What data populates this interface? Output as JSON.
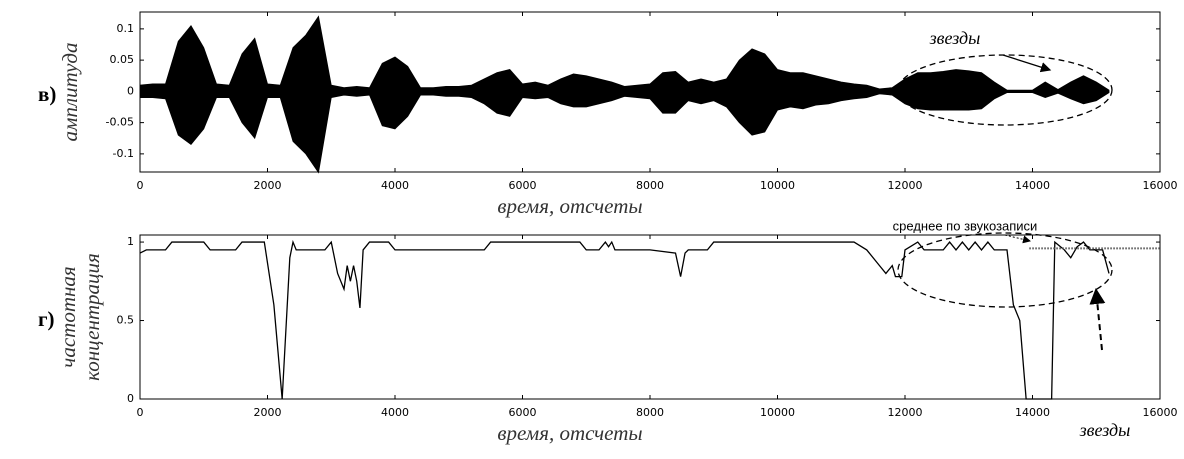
{
  "chart_data": [
    {
      "type": "area",
      "panel_label": "в)",
      "xlabel": "время, отсчеты",
      "ylabel": "амплитуда",
      "annotation": "звезды",
      "xlim": [
        0,
        16000
      ],
      "xticks": [
        0,
        2000,
        4000,
        6000,
        8000,
        10000,
        12000,
        14000,
        16000
      ],
      "ylim": [
        -0.129,
        0.127
      ],
      "yticks": [
        -0.1,
        -0.05,
        0,
        0.05,
        0.1
      ],
      "color": "#000000",
      "x": [
        0,
        200,
        400,
        600,
        800,
        1000,
        1200,
        1400,
        1600,
        1800,
        2000,
        2200,
        2400,
        2600,
        2800,
        3000,
        3200,
        3400,
        3600,
        3800,
        4000,
        4200,
        4400,
        4600,
        4800,
        5000,
        5200,
        5400,
        5600,
        5800,
        6000,
        6200,
        6400,
        6600,
        6800,
        7000,
        7200,
        7400,
        7600,
        7800,
        8000,
        8200,
        8400,
        8600,
        8800,
        9000,
        9200,
        9400,
        9600,
        9800,
        10000,
        10200,
        10400,
        10600,
        10800,
        11000,
        11200,
        11400,
        11600,
        11800,
        12000,
        12200,
        12400,
        12600,
        12800,
        13000,
        13200,
        13400,
        13600,
        13800,
        14000,
        14200,
        14400,
        14600,
        14800,
        15000,
        15200
      ],
      "values": [
        0.01,
        0.012,
        0.012,
        0.08,
        0.105,
        0.07,
        0.012,
        0.01,
        0.06,
        0.085,
        0.012,
        0.01,
        0.07,
        0.09,
        0.12,
        0.01,
        0.006,
        0.008,
        0.006,
        0.045,
        0.055,
        0.04,
        0.006,
        0.006,
        0.008,
        0.008,
        0.01,
        0.02,
        0.03,
        0.035,
        0.012,
        0.015,
        0.01,
        0.02,
        0.028,
        0.025,
        0.02,
        0.015,
        0.008,
        0.01,
        0.012,
        0.03,
        0.032,
        0.015,
        0.02,
        0.015,
        0.02,
        0.05,
        0.068,
        0.06,
        0.035,
        0.03,
        0.03,
        0.025,
        0.02,
        0.015,
        0.012,
        0.01,
        0.004,
        0.006,
        0.02,
        0.03,
        0.03,
        0.032,
        0.035,
        0.033,
        0.03,
        0.015,
        0.002,
        0.002,
        0.002,
        0.015,
        0.003,
        0.015,
        0.025,
        0.015,
        0.002
      ],
      "lower_values": [
        -0.01,
        -0.01,
        -0.012,
        -0.07,
        -0.085,
        -0.06,
        -0.01,
        -0.01,
        -0.05,
        -0.075,
        -0.01,
        -0.01,
        -0.08,
        -0.1,
        -0.13,
        -0.01,
        -0.006,
        -0.008,
        -0.006,
        -0.055,
        -0.06,
        -0.04,
        -0.006,
        -0.006,
        -0.008,
        -0.008,
        -0.01,
        -0.02,
        -0.035,
        -0.04,
        -0.01,
        -0.012,
        -0.01,
        -0.02,
        -0.025,
        -0.025,
        -0.02,
        -0.015,
        -0.008,
        -0.01,
        -0.012,
        -0.035,
        -0.035,
        -0.015,
        -0.02,
        -0.015,
        -0.025,
        -0.05,
        -0.07,
        -0.065,
        -0.03,
        -0.025,
        -0.028,
        -0.022,
        -0.02,
        -0.015,
        -0.012,
        -0.01,
        -0.004,
        -0.006,
        -0.02,
        -0.028,
        -0.03,
        -0.03,
        -0.03,
        -0.03,
        -0.028,
        -0.012,
        -0.002,
        -0.002,
        -0.002,
        -0.01,
        -0.003,
        -0.012,
        -0.02,
        -0.015,
        -0.002
      ]
    },
    {
      "type": "line",
      "panel_label": "г)",
      "xlabel": "время, отсчеты",
      "ylabel": [
        "частотная",
        "концентрация"
      ],
      "annotation": "звезды",
      "mean_label": "среднее по звукозаписи",
      "mean_x": [
        13950,
        16000
      ],
      "mean_value": 0.96,
      "xlim": [
        0,
        16000
      ],
      "xticks": [
        0,
        2000,
        4000,
        6000,
        8000,
        10000,
        12000,
        14000,
        16000
      ],
      "ylim": [
        0,
        1.045
      ],
      "yticks": [
        0,
        0.5,
        1
      ],
      "color": "#000000",
      "x": [
        0,
        100,
        400,
        500,
        1000,
        1100,
        1500,
        1600,
        1950,
        2100,
        2230,
        2350,
        2400,
        2450,
        2900,
        3000,
        3100,
        3200,
        3250,
        3300,
        3350,
        3400,
        3450,
        3500,
        3600,
        3900,
        4000,
        5400,
        5500,
        6900,
        7000,
        7200,
        7300,
        7350,
        7400,
        7450,
        8000,
        8400,
        8480,
        8550,
        8600,
        8900,
        9000,
        11200,
        11400,
        11600,
        11700,
        11800,
        11850,
        11950,
        12000,
        12200,
        12300,
        12600,
        12700,
        12800,
        12900,
        13000,
        13100,
        13200,
        13300,
        13400,
        13600,
        13700,
        13800,
        13900,
        14300,
        14350,
        14500,
        14600,
        14700,
        14800,
        14900,
        15100,
        15200
      ],
      "values": [
        0.93,
        0.95,
        0.95,
        1,
        1,
        0.95,
        0.95,
        1,
        1,
        0.6,
        0,
        0.9,
        1,
        0.95,
        0.95,
        1,
        0.8,
        0.7,
        0.85,
        0.75,
        0.85,
        0.75,
        0.58,
        0.95,
        1,
        1,
        0.95,
        0.95,
        1,
        1,
        0.95,
        0.95,
        1,
        0.97,
        1,
        0.95,
        0.95,
        0.93,
        0.78,
        0.93,
        0.95,
        0.95,
        1,
        1,
        0.95,
        0.85,
        0.8,
        0.85,
        0.78,
        0.78,
        0.95,
        1,
        0.95,
        0.95,
        1,
        0.95,
        1,
        0.95,
        1,
        0.95,
        1,
        0.95,
        0.95,
        0.6,
        0.5,
        0,
        0,
        1,
        0.95,
        0.9,
        0.97,
        1,
        0.95,
        0.95,
        0.8
      ]
    }
  ]
}
